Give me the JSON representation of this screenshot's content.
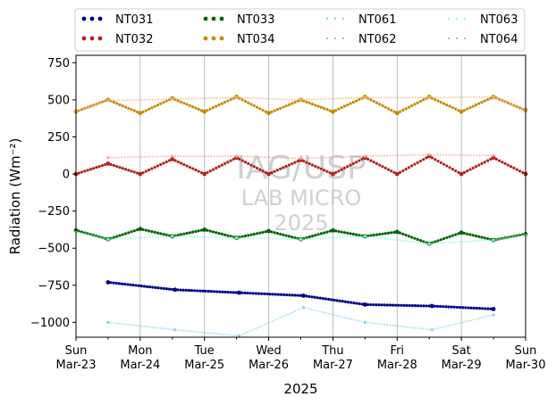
{
  "chart_data": {
    "type": "scatter",
    "title": "",
    "xlabel": "2025",
    "ylabel": "Radiation (Wm⁻²)",
    "xlim": [
      "2025-03-23",
      "2025-03-30"
    ],
    "ylim": [
      -1100,
      800
    ],
    "yticks": [
      -1000,
      -750,
      -500,
      -250,
      0,
      250,
      500,
      750
    ],
    "ytick_labels": [
      "−1000",
      "−750",
      "−500",
      "−250",
      "0",
      "250",
      "500",
      "750"
    ],
    "xticks": [
      {
        "date": "2025-03-23",
        "day": "Sun",
        "date_label": "Mar-23"
      },
      {
        "date": "2025-03-24",
        "day": "Mon",
        "date_label": "Mar-24"
      },
      {
        "date": "2025-03-25",
        "day": "Tue",
        "date_label": "Mar-25"
      },
      {
        "date": "2025-03-26",
        "day": "Wed",
        "date_label": "Mar-26"
      },
      {
        "date": "2025-03-27",
        "day": "Thu",
        "date_label": "Mar-27"
      },
      {
        "date": "2025-03-28",
        "day": "Fri",
        "date_label": "Mar-28"
      },
      {
        "date": "2025-03-29",
        "day": "Sat",
        "date_label": "Mar-29"
      },
      {
        "date": "2025-03-30",
        "day": "Sun",
        "date_label": "Mar-30"
      }
    ],
    "grid": "vertical",
    "legend_position": "top, above plot, 4 columns",
    "watermark": [
      "IAG/USP",
      "LAB MICRO",
      "2025"
    ],
    "series": [
      {
        "name": "NT031",
        "color": "#00008b",
        "style": "points",
        "x": [
          "2025-03-23 12:00",
          "2025-03-24 13:00",
          "2025-03-25 13:00",
          "2025-03-26 13:00",
          "2025-03-27 12:00",
          "2025-03-28 13:00",
          "2025-03-29 12:00"
        ],
        "y": [
          -730,
          -780,
          -800,
          -820,
          -880,
          -890,
          -910
        ]
      },
      {
        "name": "NT032",
        "color": "#b22222",
        "style": "points",
        "x": [
          "2025-03-23 00:00",
          "2025-03-23 12:00",
          "2025-03-24 00:00",
          "2025-03-24 12:00",
          "2025-03-25 00:00",
          "2025-03-25 12:00",
          "2025-03-26 00:00",
          "2025-03-26 12:00",
          "2025-03-27 00:00",
          "2025-03-27 12:00",
          "2025-03-28 00:00",
          "2025-03-28 12:00",
          "2025-03-29 00:00",
          "2025-03-29 12:00",
          "2025-03-30 00:00"
        ],
        "y": [
          0,
          70,
          0,
          100,
          0,
          110,
          0,
          95,
          0,
          110,
          0,
          120,
          0,
          110,
          0
        ]
      },
      {
        "name": "NT033",
        "color": "#006400",
        "style": "points",
        "x": [
          "2025-03-23 00:00",
          "2025-03-23 12:00",
          "2025-03-24 00:00",
          "2025-03-24 12:00",
          "2025-03-25 00:00",
          "2025-03-25 12:00",
          "2025-03-26 00:00",
          "2025-03-26 12:00",
          "2025-03-27 00:00",
          "2025-03-27 12:00",
          "2025-03-28 00:00",
          "2025-03-28 12:00",
          "2025-03-29 00:00",
          "2025-03-29 12:00",
          "2025-03-30 00:00"
        ],
        "y": [
          -380,
          -440,
          -370,
          -420,
          -375,
          -430,
          -385,
          -440,
          -380,
          -420,
          -390,
          -470,
          -395,
          -445,
          -405
        ]
      },
      {
        "name": "NT034",
        "color": "#c88a00",
        "style": "points",
        "x": [
          "2025-03-23 00:00",
          "2025-03-23 12:00",
          "2025-03-24 00:00",
          "2025-03-24 12:00",
          "2025-03-25 00:00",
          "2025-03-25 12:00",
          "2025-03-26 00:00",
          "2025-03-26 12:00",
          "2025-03-27 00:00",
          "2025-03-27 12:00",
          "2025-03-28 00:00",
          "2025-03-28 12:00",
          "2025-03-29 00:00",
          "2025-03-29 12:00",
          "2025-03-30 00:00"
        ],
        "y": [
          420,
          500,
          410,
          510,
          420,
          520,
          410,
          500,
          420,
          520,
          410,
          520,
          420,
          520,
          430
        ]
      },
      {
        "name": "NT061",
        "color": "#87ceeb",
        "style": "dots",
        "x": [
          "2025-03-23 12:00",
          "2025-03-24 13:00",
          "2025-03-25 13:00",
          "2025-03-26 13:00",
          "2025-03-27 12:00",
          "2025-03-28 13:00",
          "2025-03-29 12:00"
        ],
        "y": [
          -1000,
          -1050,
          -1090,
          -900,
          -1000,
          -1050,
          -950
        ]
      },
      {
        "name": "NT062",
        "color": "#f4a090",
        "style": "dots",
        "x": [
          "2025-03-23 12:00",
          "2025-03-24 12:00",
          "2025-03-25 12:00",
          "2025-03-26 12:00",
          "2025-03-27 12:00",
          "2025-03-28 12:00",
          "2025-03-29 12:00"
        ],
        "y": [
          110,
          120,
          120,
          105,
          120,
          130,
          125
        ]
      },
      {
        "name": "NT063",
        "color": "#7fffd4",
        "style": "dots",
        "x": [
          "2025-03-23 00:00",
          "2025-03-23 12:00",
          "2025-03-24 12:00",
          "2025-03-25 12:00",
          "2025-03-26 12:00",
          "2025-03-27 12:00",
          "2025-03-28 12:00",
          "2025-03-29 12:00",
          "2025-03-30 00:00"
        ],
        "y": [
          -390,
          -440,
          -420,
          -430,
          -440,
          -420,
          -470,
          -445,
          -410
        ]
      },
      {
        "name": "NT064",
        "color": "#f0b080",
        "style": "dots",
        "x": [
          "2025-03-23 00:00",
          "2025-03-23 12:00",
          "2025-03-24 12:00",
          "2025-03-25 12:00",
          "2025-03-26 12:00",
          "2025-03-27 12:00",
          "2025-03-28 12:00",
          "2025-03-29 12:00",
          "2025-03-30 00:00"
        ],
        "y": [
          420,
          495,
          505,
          515,
          500,
          515,
          515,
          520,
          430
        ]
      }
    ]
  }
}
